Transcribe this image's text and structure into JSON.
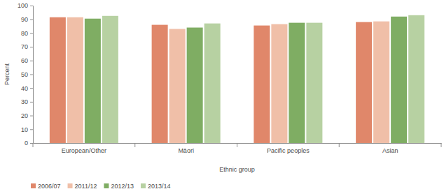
{
  "chart_data": {
    "type": "bar",
    "x_label": "Ethnic group",
    "y_label": "Percent",
    "categories": [
      "European/Other",
      "Māori",
      "Pacific peoples",
      "Asian"
    ],
    "series": [
      {
        "name": "2006/07",
        "color": "#e0876a",
        "values": [
          91.5,
          86,
          85.5,
          88
        ]
      },
      {
        "name": "2011/12",
        "color": "#f0bfa8",
        "values": [
          91.5,
          83,
          86.5,
          88.5
        ]
      },
      {
        "name": "2012/13",
        "color": "#7fad63",
        "values": [
          90.5,
          84,
          87.5,
          92
        ]
      },
      {
        "name": "2013/14",
        "color": "#b7d1a2",
        "values": [
          92.5,
          87,
          87.5,
          93
        ]
      }
    ],
    "ylim": [
      0,
      100
    ],
    "yticks": [
      0,
      10,
      20,
      30,
      40,
      50,
      60,
      70,
      80,
      90,
      100
    ],
    "grid": false,
    "legend": "bottom-left"
  }
}
